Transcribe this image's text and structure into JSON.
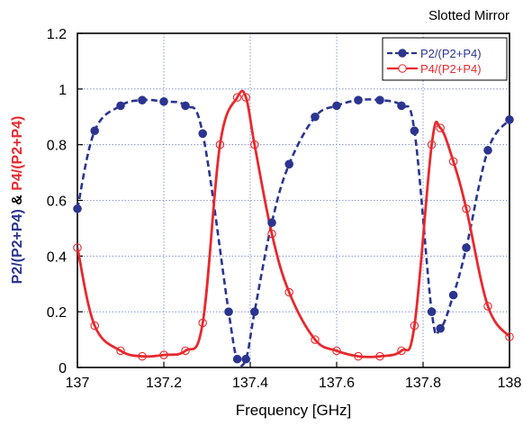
{
  "chart_data": {
    "type": "line",
    "title": "Slotted Mirror",
    "xlabel": "Frequency [GHz]",
    "ylabel_parts": [
      "P2/(P2+P4)",
      " & ",
      "P4/(P2+P4)"
    ],
    "xlim": [
      137,
      138
    ],
    "ylim": [
      0,
      1.2
    ],
    "xticks": [
      137,
      137.2,
      137.4,
      137.6,
      137.8,
      138
    ],
    "xtick_labels": [
      "137",
      "137.2",
      "137.4",
      "137.6",
      "137.8",
      "138"
    ],
    "yticks": [
      0,
      0.2,
      0.4,
      0.6,
      0.8,
      1,
      1.2
    ],
    "ytick_labels": [
      "0",
      "0.2",
      "0.4",
      "0.6",
      "0.8",
      "1",
      "1.2"
    ],
    "grid": true,
    "legend_position": "top-right",
    "series": [
      {
        "name": "P2/(P2+P4)",
        "color": "#2b3590",
        "line_style": "dashed",
        "marker": "filled-circle",
        "points": [
          [
            137.0,
            0.57
          ],
          [
            137.04,
            0.85
          ],
          [
            137.1,
            0.94
          ],
          [
            137.15,
            0.96
          ],
          [
            137.2,
            0.955
          ],
          [
            137.25,
            0.94
          ],
          [
            137.29,
            0.84
          ],
          [
            137.35,
            0.2
          ],
          [
            137.37,
            0.03
          ],
          [
            137.39,
            0.03
          ],
          [
            137.41,
            0.2
          ],
          [
            137.45,
            0.52
          ],
          [
            137.49,
            0.73
          ],
          [
            137.55,
            0.9
          ],
          [
            137.6,
            0.94
          ],
          [
            137.65,
            0.96
          ],
          [
            137.7,
            0.96
          ],
          [
            137.75,
            0.94
          ],
          [
            137.78,
            0.85
          ],
          [
            137.82,
            0.2
          ],
          [
            137.84,
            0.14
          ],
          [
            137.87,
            0.26
          ],
          [
            137.9,
            0.43
          ],
          [
            137.95,
            0.78
          ],
          [
            138.0,
            0.89
          ]
        ]
      },
      {
        "name": "P4/(P2+P4)",
        "color": "#e8292e",
        "line_style": "solid",
        "marker": "open-circle",
        "points": [
          [
            137.0,
            0.43
          ],
          [
            137.04,
            0.15
          ],
          [
            137.1,
            0.06
          ],
          [
            137.15,
            0.04
          ],
          [
            137.2,
            0.045
          ],
          [
            137.25,
            0.06
          ],
          [
            137.29,
            0.16
          ],
          [
            137.33,
            0.8
          ],
          [
            137.37,
            0.97
          ],
          [
            137.39,
            0.97
          ],
          [
            137.41,
            0.8
          ],
          [
            137.45,
            0.48
          ],
          [
            137.49,
            0.27
          ],
          [
            137.55,
            0.1
          ],
          [
            137.6,
            0.06
          ],
          [
            137.65,
            0.04
          ],
          [
            137.7,
            0.04
          ],
          [
            137.75,
            0.06
          ],
          [
            137.78,
            0.15
          ],
          [
            137.82,
            0.8
          ],
          [
            137.84,
            0.86
          ],
          [
            137.87,
            0.74
          ],
          [
            137.9,
            0.57
          ],
          [
            137.95,
            0.22
          ],
          [
            138.0,
            0.11
          ]
        ]
      }
    ]
  }
}
